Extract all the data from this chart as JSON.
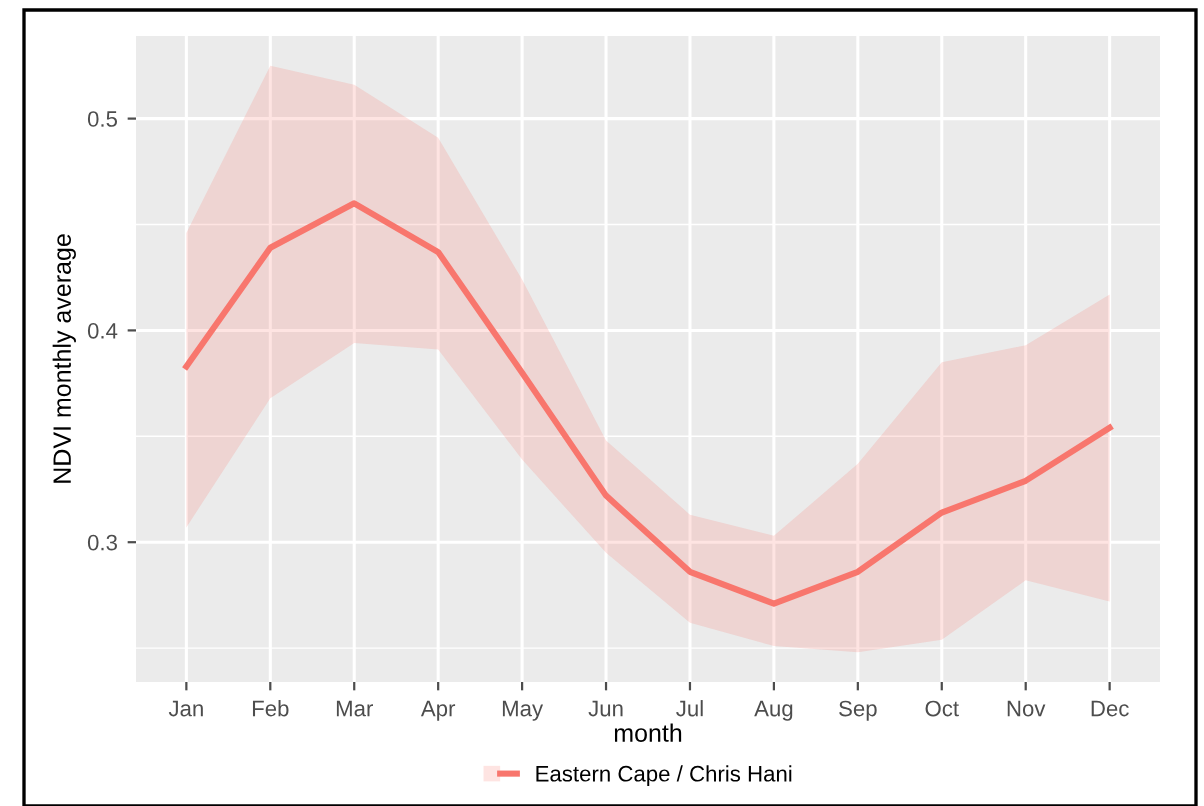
{
  "chart_data": {
    "type": "line",
    "xlabel": "month",
    "ylabel": "NDVI monthly average",
    "categories": [
      "Jan",
      "Feb",
      "Mar",
      "Apr",
      "May",
      "Jun",
      "Jul",
      "Aug",
      "Sep",
      "Oct",
      "Nov",
      "Dec"
    ],
    "series": [
      {
        "name": "Eastern Cape / Chris Hani",
        "color": "#f8766d",
        "values": [
          0.383,
          0.439,
          0.46,
          0.437,
          0.38,
          0.322,
          0.286,
          0.271,
          0.286,
          0.314,
          0.329,
          0.354
        ],
        "lower": [
          0.307,
          0.368,
          0.394,
          0.391,
          0.339,
          0.295,
          0.262,
          0.251,
          0.248,
          0.254,
          0.282,
          0.272
        ],
        "upper": [
          0.446,
          0.525,
          0.516,
          0.491,
          0.424,
          0.348,
          0.313,
          0.303,
          0.337,
          0.385,
          0.393,
          0.417
        ]
      }
    ],
    "ylim": [
      0.234,
      0.539
    ],
    "yticks": [
      0.3,
      0.4,
      0.5
    ],
    "grid": true,
    "legend": "bottom",
    "marker": "none",
    "line_style": "solid"
  }
}
